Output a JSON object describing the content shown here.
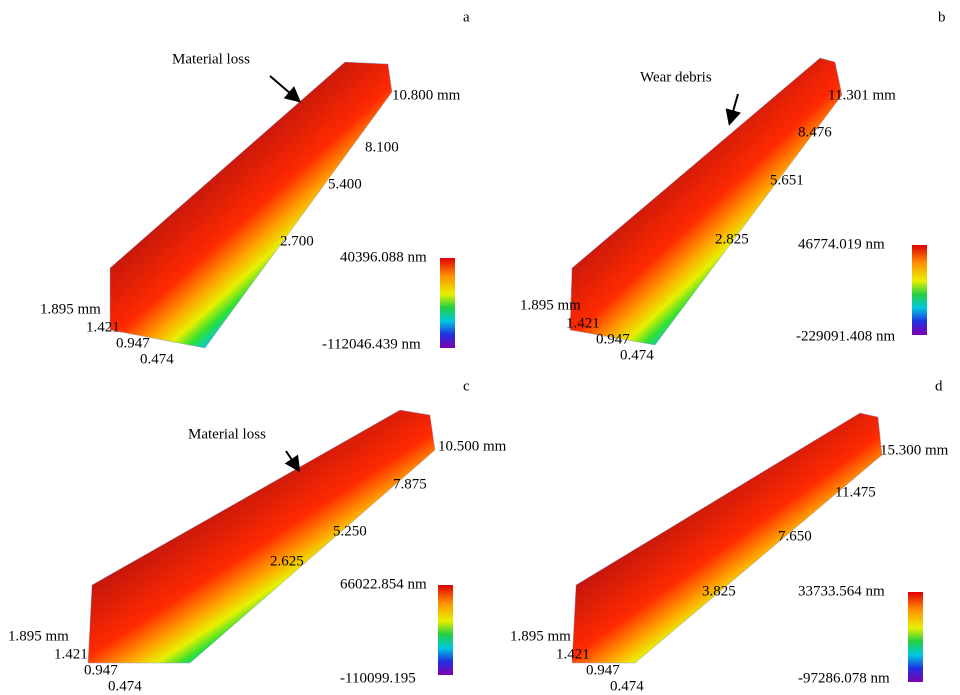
{
  "panels": [
    {
      "label": "a",
      "annotation": "Material loss",
      "length_ticks": [
        "10.800 mm",
        "8.100",
        "5.400",
        "2.700"
      ],
      "width_ticks": [
        "1.895 mm",
        "1.421",
        "0.947",
        "0.474"
      ],
      "colorbar_max": "40396.088 nm",
      "colorbar_min": "-112046.439 nm"
    },
    {
      "label": "b",
      "annotation": "Wear debris",
      "length_ticks": [
        "11.301 mm",
        "8.476",
        "5.651",
        "2.825"
      ],
      "width_ticks": [
        "1.895 mm",
        "1.421",
        "0.947",
        "0.474"
      ],
      "colorbar_max": "46774.019 nm",
      "colorbar_min": "-229091.408 nm"
    },
    {
      "label": "c",
      "annotation": "Material loss",
      "length_ticks": [
        "10.500 mm",
        "7.875",
        "5.250",
        "2.625"
      ],
      "width_ticks": [
        "1.895 mm",
        "1.421",
        "0.947",
        "0.474"
      ],
      "colorbar_max": "66022.854 nm",
      "colorbar_min": "-110099.195"
    },
    {
      "label": "d",
      "length_ticks": [
        "15.300 mm",
        "11.475",
        "7.650",
        "3.825"
      ],
      "width_ticks": [
        "1.895 mm",
        "1.421",
        "0.947",
        "0.474"
      ],
      "colorbar_max": "33733.564 nm",
      "colorbar_min": "-97286.078 nm"
    }
  ]
}
